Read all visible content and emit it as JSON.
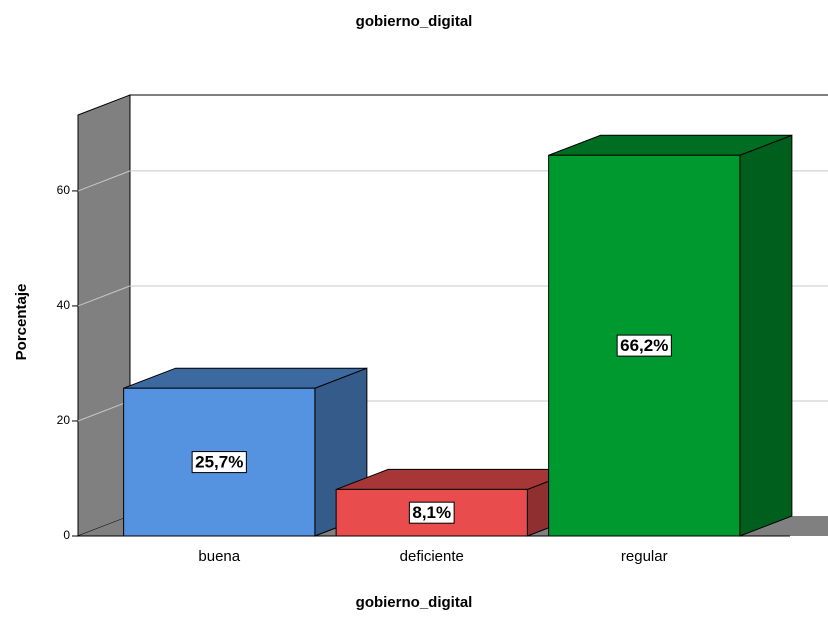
{
  "chart_data": {
    "type": "bar3d",
    "title": "gobierno_digital",
    "x_label": "gobierno_digital",
    "y_label": "Porcentaje",
    "categories": [
      "buena",
      "deficiente",
      "regular"
    ],
    "series": [
      {
        "name": "Porcentaje",
        "colors": [
          "#5592e0",
          "#e84c4c",
          "#00992f"
        ],
        "values": [
          25.7,
          8.1,
          66.2
        ],
        "value_labels": [
          "25,7%",
          "8,1%",
          "66,2%"
        ]
      }
    ],
    "ylim": [
      0,
      73.2
    ],
    "yticks": [
      0,
      20,
      40,
      60
    ],
    "grid": true
  }
}
